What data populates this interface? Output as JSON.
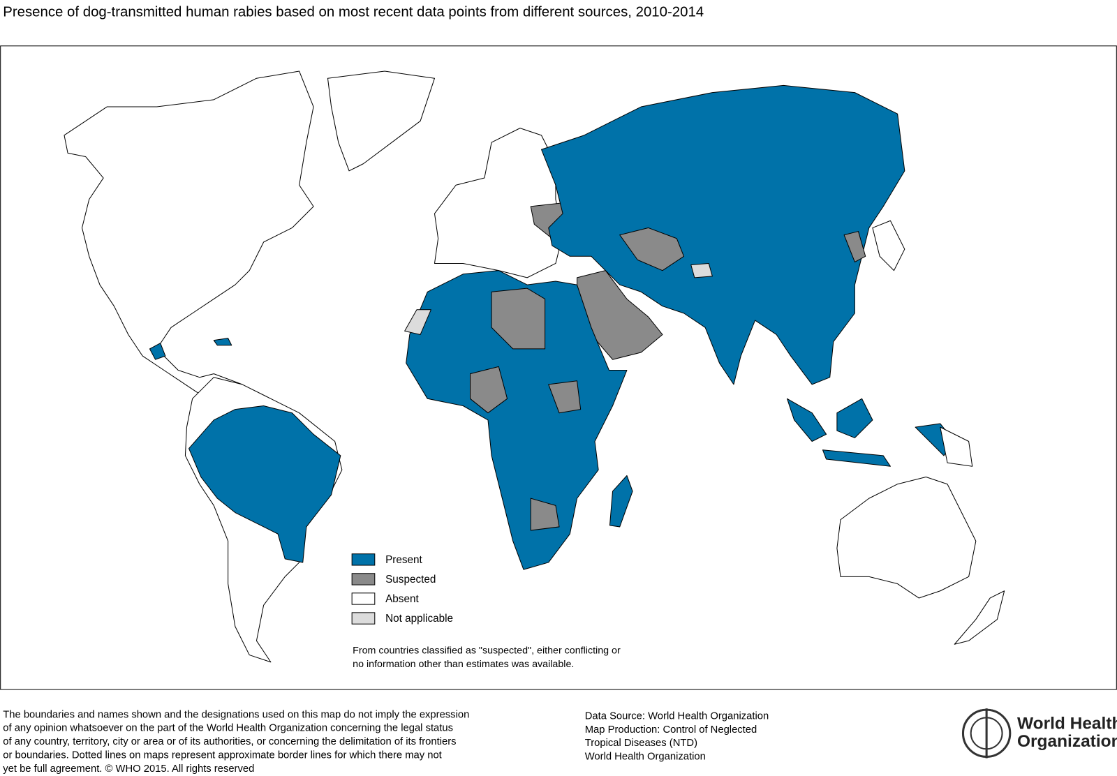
{
  "title": "Presence of dog-transmitted human rabies based on most recent data points from different sources, 2010-2014",
  "legend": [
    {
      "label": "Present",
      "color": "#0072a9"
    },
    {
      "label": "Suspected",
      "color": "#8a8a8a"
    },
    {
      "label": "Absent",
      "color": "#ffffff"
    },
    {
      "label": "Not applicable",
      "color": "#dcdcdc"
    }
  ],
  "note": [
    "From countries classified as \"suspected\", either conflicting or",
    "no information other than estimates was available."
  ],
  "disclaimer": [
    "The boundaries and names shown and the designations used on this map do not imply the expression",
    "of any opinion whatsoever on the part of the World Health Organization concerning the legal status",
    "of any country, territory, city or area or of its authorities, or concerning the delimitation of its frontiers",
    "or boundaries. Dotted lines on maps represent approximate border lines for which there may not",
    "yet be full agreement. © WHO 2015. All rights reserved"
  ],
  "source": [
    "Data Source: World Health Organization",
    "Map Production: Control of Neglected",
    "Tropical Diseases (NTD)",
    "World Health Organization"
  ],
  "logo": [
    "World Health",
    "Organization"
  ]
}
